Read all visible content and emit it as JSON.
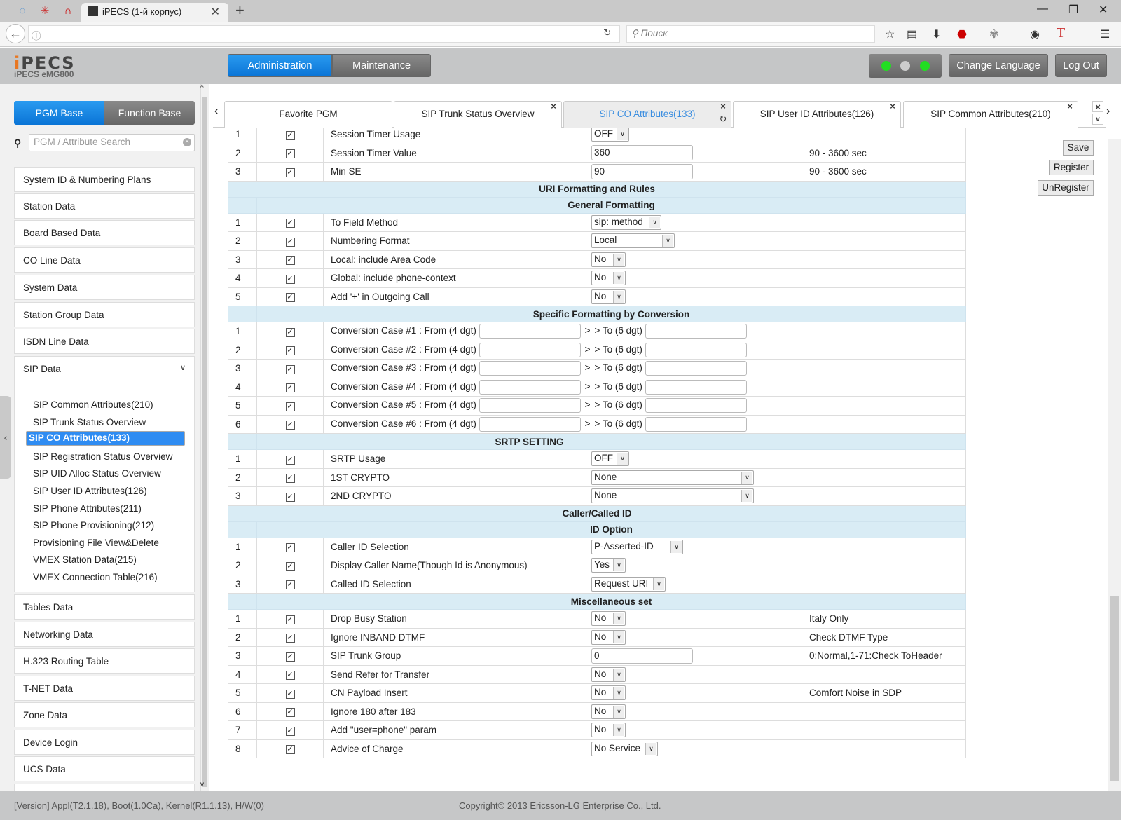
{
  "browser": {
    "tab_title": "iPECS (1-й корпус)",
    "search_placeholder": "Поиск"
  },
  "header": {
    "logo": "iPECS",
    "model": "iPECS eMG800",
    "admin": "Administration",
    "maintenance": "Maintenance",
    "change_language": "Change Language",
    "logout": "Log Out",
    "led_colors": [
      "#22dd22",
      "#cccccc",
      "#22dd22"
    ]
  },
  "sidebar": {
    "pgm_base": "PGM Base",
    "function_base": "Function Base",
    "search_placeholder": "PGM / Attribute Search",
    "items_top": [
      "System ID & Numbering Plans",
      "Station Data",
      "Board Based Data",
      "CO Line Data",
      "System Data",
      "Station Group Data",
      "ISDN Line Data"
    ],
    "sip": "SIP Data",
    "sip_items": [
      "SIP Common Attributes(210)",
      "SIP Trunk Status Overview",
      "SIP CO Attributes(133)",
      "SIP Registration Status Overview",
      "SIP UID Alloc Status Overview",
      "SIP User ID Attributes(126)",
      "SIP Phone Attributes(211)",
      "SIP Phone Provisioning(212)",
      "Provisioning File View&Delete",
      "VMEX Station Data(215)",
      "VMEX Connection Table(216)"
    ],
    "selected_sip_index": 2,
    "items_bottom": [
      "Tables Data",
      "Networking Data",
      "H.323 Routing Table",
      "T-NET Data",
      "Zone Data",
      "Device Login",
      "UCS Data"
    ]
  },
  "tabs": [
    {
      "label": "Favorite PGM"
    },
    {
      "label": "SIP Trunk Status Overview"
    },
    {
      "label": "SIP CO Attributes(133)",
      "active": true
    },
    {
      "label": "SIP User ID Attributes(126)"
    },
    {
      "label": "SIP Common Attributes(210)"
    }
  ],
  "actions": {
    "save": "Save",
    "register": "Register",
    "unregister": "UnRegister"
  },
  "table": [
    {
      "num": "1",
      "label": "Session Timer Usage",
      "ctrl": "select",
      "value": "OFF"
    },
    {
      "num": "2",
      "label": "Session Timer Value",
      "ctrl": "text",
      "value": "360",
      "note": "90 - 3600 sec"
    },
    {
      "num": "3",
      "label": "Min SE",
      "ctrl": "text",
      "value": "90",
      "note": "90 - 3600 sec"
    },
    {
      "header": "URI Formatting and Rules",
      "level": 1
    },
    {
      "header": "General Formatting",
      "level": 2
    },
    {
      "num": "1",
      "label": "To Field Method",
      "ctrl": "select",
      "value": "sip: method"
    },
    {
      "num": "2",
      "label": "Numbering Format",
      "ctrl": "select",
      "value": "Local"
    },
    {
      "num": "3",
      "label": "Local: include Area Code",
      "ctrl": "select",
      "value": "No"
    },
    {
      "num": "4",
      "label": "Global: include phone-context",
      "ctrl": "select",
      "value": "No"
    },
    {
      "num": "5",
      "label": "Add '+' in Outgoing Call",
      "ctrl": "select",
      "value": "No"
    },
    {
      "header": "Specific Formatting by Conversion",
      "level": 2
    },
    {
      "num": "1",
      "label": "Conversion Case #1 : From (4 dgt)",
      "ctrl": "conv",
      "from": "",
      "to_label": "> To (6 dgt)",
      "to": ""
    },
    {
      "num": "2",
      "label": "Conversion Case #2 : From (4 dgt)",
      "ctrl": "conv",
      "from": "",
      "to_label": "> To (6 dgt)",
      "to": ""
    },
    {
      "num": "3",
      "label": "Conversion Case #3 : From (4 dgt)",
      "ctrl": "conv",
      "from": "",
      "to_label": "> To (6 dgt)",
      "to": ""
    },
    {
      "num": "4",
      "label": "Conversion Case #4 : From (4 dgt)",
      "ctrl": "conv",
      "from": "",
      "to_label": "> To (6 dgt)",
      "to": ""
    },
    {
      "num": "5",
      "label": "Conversion Case #5 : From (4 dgt)",
      "ctrl": "conv",
      "from": "",
      "to_label": "> To (6 dgt)",
      "to": ""
    },
    {
      "num": "6",
      "label": "Conversion Case #6 : From (4 dgt)",
      "ctrl": "conv",
      "from": "",
      "to_label": "> To (6 dgt)",
      "to": ""
    },
    {
      "header": "SRTP SETTING",
      "level": 3
    },
    {
      "num": "1",
      "label": "SRTP Usage",
      "ctrl": "select",
      "value": "OFF"
    },
    {
      "num": "2",
      "label": "1ST CRYPTO",
      "ctrl": "select",
      "value": "None"
    },
    {
      "num": "3",
      "label": "2ND CRYPTO",
      "ctrl": "select",
      "value": "None"
    },
    {
      "header": "Caller/Called ID",
      "level": 1
    },
    {
      "header": "ID Option",
      "level": 2
    },
    {
      "num": "1",
      "label": "Caller ID Selection",
      "ctrl": "select",
      "value": "P-Asserted-ID"
    },
    {
      "num": "2",
      "label": "Display Caller Name(Though Id is Anonymous)",
      "ctrl": "select",
      "value": "Yes"
    },
    {
      "num": "3",
      "label": "Called ID Selection",
      "ctrl": "select",
      "value": "Request URI"
    },
    {
      "header": "Miscellaneous set",
      "level": 2
    },
    {
      "num": "1",
      "label": "Drop Busy Station",
      "ctrl": "select",
      "value": "No",
      "note": "Italy Only"
    },
    {
      "num": "2",
      "label": "Ignore INBAND DTMF",
      "ctrl": "select",
      "value": "No",
      "note": "Check DTMF Type"
    },
    {
      "num": "3",
      "label": "SIP Trunk Group",
      "ctrl": "text",
      "value": "0",
      "note": "0:Normal,1-71:Check ToHeader"
    },
    {
      "num": "4",
      "label": "Send Refer for Transfer",
      "ctrl": "select",
      "value": "No"
    },
    {
      "num": "5",
      "label": "CN Payload Insert",
      "ctrl": "select",
      "value": "No",
      "note": "Comfort Noise in SDP"
    },
    {
      "num": "6",
      "label": "Ignore 180 after 183",
      "ctrl": "select",
      "value": "No"
    },
    {
      "num": "7",
      "label": "Add \"user=phone\" param",
      "ctrl": "select",
      "value": "No"
    },
    {
      "num": "8",
      "label": "Advice of Charge",
      "ctrl": "select",
      "value": "No Service"
    }
  ],
  "footer": {
    "version": "[Version] Appl(T2.1.18), Boot(1.0Ca), Kernel(R1.1.13), H/W(0)",
    "copyright": "Copyright© 2013 Ericsson-LG Enterprise Co., Ltd."
  }
}
